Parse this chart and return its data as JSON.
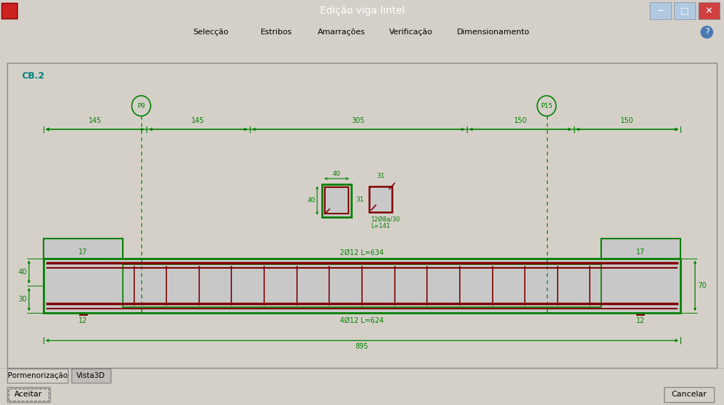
{
  "title": "Edição viga lintel",
  "title_bar_color": "#6ab0e0",
  "window_bg": "#d4d0c8",
  "drawing_bg": "#c8c8c8",
  "green": "#008000",
  "dark_red": "#800000",
  "teal": "#008080",
  "menu_items": [
    "Selecção",
    "Estribos",
    "Amarrações",
    "Verificação",
    "Dimensionamento"
  ],
  "cb_label": "CB.2",
  "p9_label": "P9",
  "p15_label": "P15",
  "dim_labels_top": [
    "145",
    "145",
    "305",
    "150",
    "150"
  ],
  "dim_bottom_label": "895",
  "label_2o12_top": "2Ø12 L=634",
  "label_4o12_bot": "4Ø12 L=624",
  "label_12o8_line1": "12Ø8a/30",
  "label_12o8_line2": "L=141",
  "label_17_left": "17",
  "label_17_right": "17",
  "label_12_left": "12",
  "label_12_right": "12",
  "label_40w": "40",
  "label_40h": "40",
  "label_31w": "31",
  "label_31h": "31",
  "label_70": "70",
  "label_40dim": "40",
  "label_30dim": "30",
  "tab_labels": [
    "Pormenorização",
    "Vista3D"
  ],
  "btn_aceitar": "Aceitar",
  "btn_cancelar": "Cancelar"
}
